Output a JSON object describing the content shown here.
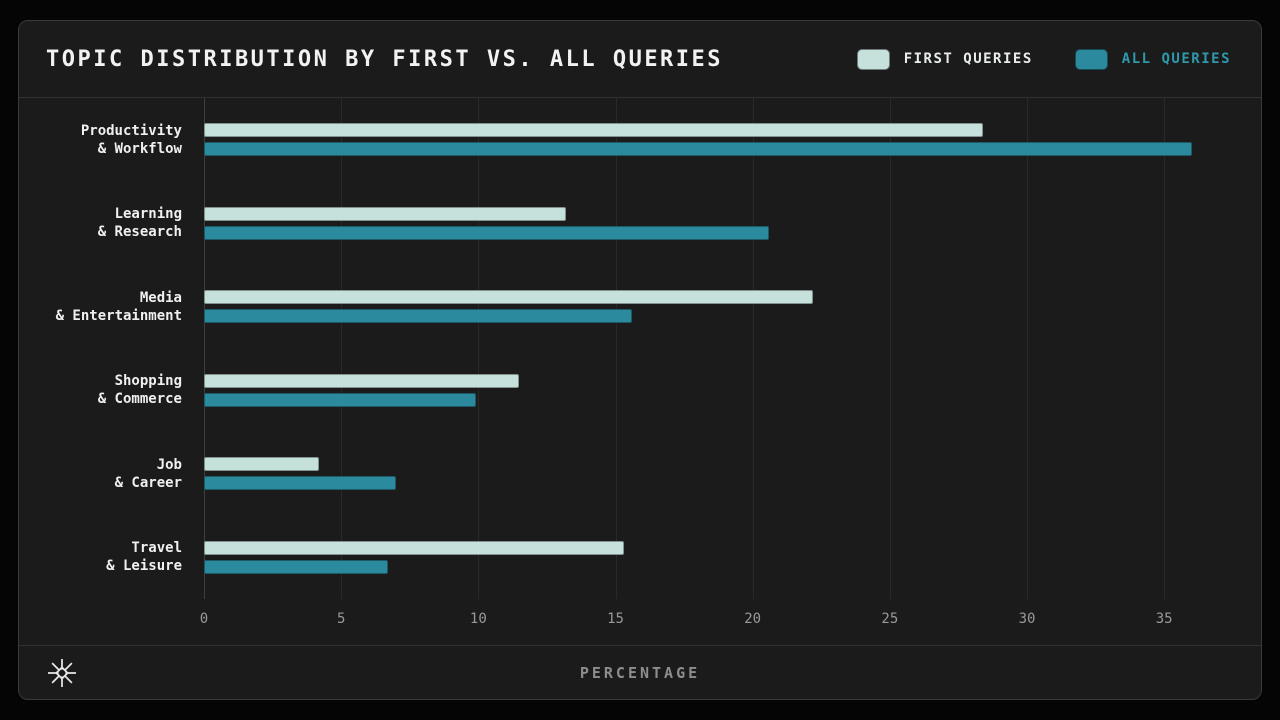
{
  "header": {
    "title": "TOPIC DISTRIBUTION BY FIRST VS. ALL QUERIES",
    "legend": [
      {
        "label": "FIRST QUERIES",
        "swatch_color": "#c6e0dc",
        "text_color": "#e9edec"
      },
      {
        "label": "ALL QUERIES",
        "swatch_color": "#2b8a9d",
        "text_color": "#2f98ab"
      }
    ]
  },
  "chart_data": {
    "type": "bar",
    "orientation": "horizontal",
    "title": "TOPIC DISTRIBUTION BY FIRST VS. ALL QUERIES",
    "categories": [
      [
        "Productivity",
        "& Workflow"
      ],
      [
        "Learning",
        "& Research"
      ],
      [
        "Media",
        "& Entertainment"
      ],
      [
        "Shopping",
        "& Commerce"
      ],
      [
        "Job",
        "& Career"
      ],
      [
        "Travel",
        "& Leisure"
      ]
    ],
    "series": [
      {
        "name": "FIRST QUERIES",
        "color": "#c6e0dc",
        "values": [
          28.4,
          13.2,
          22.2,
          11.5,
          4.2,
          15.3
        ]
      },
      {
        "name": "ALL QUERIES",
        "color": "#2b8a9d",
        "values": [
          36.0,
          20.6,
          15.6,
          9.9,
          7.0,
          6.7
        ]
      }
    ],
    "xticks": [
      0,
      5,
      10,
      15,
      20,
      25,
      30,
      35
    ],
    "xlim": [
      0,
      37.8
    ],
    "xlabel": "PERCENTAGE",
    "grid": true,
    "legend_position": "top-right",
    "background": "#1b1b1b",
    "gridline_color": "#292929"
  },
  "footer": {
    "xlabel": "PERCENTAGE",
    "logo": "asterisk-logo"
  }
}
